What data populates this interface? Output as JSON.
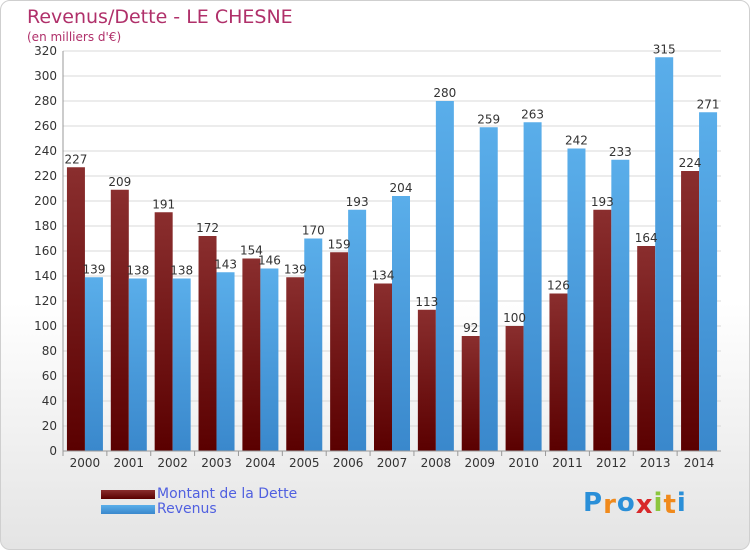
{
  "header": {
    "title": "Revenus/Dette - LE CHESNE",
    "subtitle": "(en milliers d'€)"
  },
  "colors": {
    "dette_top": "#8a2e2e",
    "dette_bottom": "#5a0000",
    "revenus_top": "#5aaeea",
    "revenus_bottom": "#3a88cc",
    "grid": "#d8d8d8",
    "axis_text": "#333333",
    "label_text": "#333333"
  },
  "chart_data": {
    "type": "bar",
    "categories": [
      "2000",
      "2001",
      "2002",
      "2003",
      "2004",
      "2005",
      "2006",
      "2007",
      "2008",
      "2009",
      "2010",
      "2011",
      "2012",
      "2013",
      "2014"
    ],
    "series": [
      {
        "name": "Montant de la Dette",
        "values": [
          227,
          209,
          191,
          172,
          154,
          139,
          159,
          134,
          113,
          92,
          100,
          126,
          193,
          164,
          224
        ]
      },
      {
        "name": "Revenus",
        "values": [
          139,
          138,
          138,
          143,
          146,
          170,
          193,
          204,
          280,
          259,
          263,
          242,
          233,
          315,
          271
        ]
      }
    ],
    "ylim": [
      0,
      320
    ],
    "yticks": [
      0,
      20,
      40,
      60,
      80,
      100,
      120,
      140,
      160,
      180,
      200,
      220,
      240,
      260,
      280,
      300,
      320
    ],
    "grid": true,
    "legend_position": "bottom-left"
  },
  "legend": {
    "dette_label": "Montant de la Dette",
    "revenus_label": "Revenus"
  },
  "logo": {
    "letters": [
      "P",
      "r",
      "o",
      "x",
      "i",
      "t",
      "i"
    ],
    "colors": [
      "#2a8fd8",
      "#f08a1c",
      "#2a8fd8",
      "#d8282a",
      "#8cc63e",
      "#f08a1c",
      "#2a8fd8"
    ]
  }
}
